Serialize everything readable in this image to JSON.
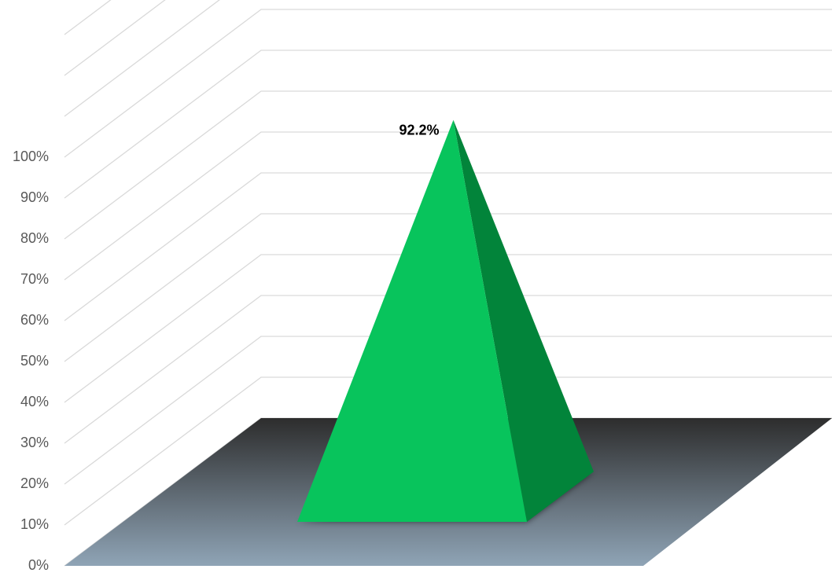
{
  "chart_data": {
    "type": "bar",
    "shape": "3d-pyramid",
    "categories": [
      ""
    ],
    "values": [
      92.2
    ],
    "unit": "%",
    "data_labels": [
      "92.2%"
    ],
    "ylim": [
      0,
      100
    ],
    "yticks": [
      "0%",
      "10%",
      "20%",
      "30%",
      "40%",
      "50%",
      "60%",
      "70%",
      "80%",
      "90%",
      "100%"
    ],
    "grid": true,
    "legend": "none",
    "title": "",
    "xlabel": "",
    "ylabel": ""
  },
  "colors": {
    "pyramid_front": "#08c45c",
    "pyramid_side": "#02843a",
    "floor_back": "#2d2d2d",
    "floor_front": "#8fa4b6",
    "gridline": "#d9d9d9",
    "tick_text": "#595959",
    "label_text": "#000000"
  }
}
